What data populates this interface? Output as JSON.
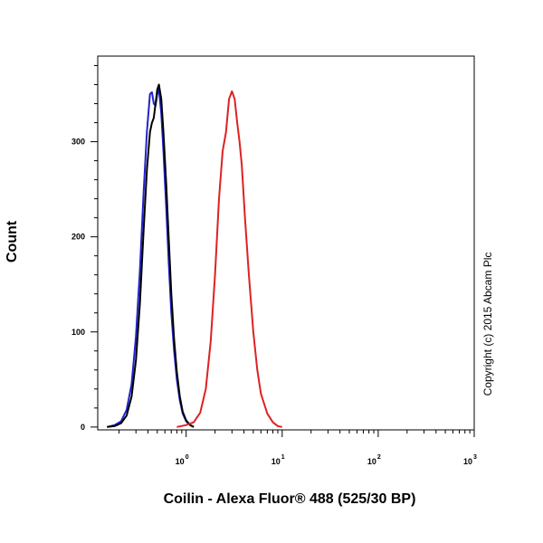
{
  "chart_data": {
    "type": "line",
    "xlabel": "Coilin - Alexa Fluor® 488 (525/30 BP)",
    "ylabel": "Count",
    "x_scale": "log",
    "xlim": [
      0.12,
      1000
    ],
    "ylim": [
      -3,
      390
    ],
    "x_ticks": [
      {
        "base": "10",
        "exp": "0",
        "value": 1
      },
      {
        "base": "10",
        "exp": "1",
        "value": 10
      },
      {
        "base": "10",
        "exp": "2",
        "value": 100
      },
      {
        "base": "10",
        "exp": "3",
        "value": 1000
      }
    ],
    "y_ticks": [
      {
        "label": "0",
        "value": 0
      },
      {
        "label": "100",
        "value": 100
      },
      {
        "label": "200",
        "value": 200
      },
      {
        "label": "300",
        "value": 300
      }
    ],
    "annotation": "Copyright (c) 2015 Abcam Plc",
    "grid": false,
    "series": [
      {
        "color": "#2222cc",
        "points": [
          [
            0.15,
            0
          ],
          [
            0.18,
            2
          ],
          [
            0.21,
            6
          ],
          [
            0.24,
            18
          ],
          [
            0.27,
            45
          ],
          [
            0.3,
            95
          ],
          [
            0.33,
            165
          ],
          [
            0.36,
            245
          ],
          [
            0.39,
            310
          ],
          [
            0.42,
            350
          ],
          [
            0.44,
            352
          ],
          [
            0.46,
            340
          ],
          [
            0.48,
            338
          ],
          [
            0.5,
            350
          ],
          [
            0.52,
            355
          ],
          [
            0.55,
            330
          ],
          [
            0.58,
            290
          ],
          [
            0.62,
            230
          ],
          [
            0.66,
            170
          ],
          [
            0.7,
            120
          ],
          [
            0.75,
            80
          ],
          [
            0.8,
            50
          ],
          [
            0.86,
            28
          ],
          [
            0.92,
            14
          ],
          [
            1.0,
            6
          ],
          [
            1.1,
            2
          ],
          [
            1.2,
            0
          ]
        ]
      },
      {
        "color": "#000000",
        "points": [
          [
            0.15,
            0
          ],
          [
            0.18,
            1
          ],
          [
            0.21,
            4
          ],
          [
            0.24,
            12
          ],
          [
            0.27,
            32
          ],
          [
            0.3,
            70
          ],
          [
            0.33,
            130
          ],
          [
            0.36,
            205
          ],
          [
            0.39,
            270
          ],
          [
            0.42,
            310
          ],
          [
            0.44,
            320
          ],
          [
            0.46,
            325
          ],
          [
            0.48,
            340
          ],
          [
            0.5,
            355
          ],
          [
            0.52,
            360
          ],
          [
            0.55,
            345
          ],
          [
            0.58,
            310
          ],
          [
            0.62,
            255
          ],
          [
            0.66,
            195
          ],
          [
            0.7,
            140
          ],
          [
            0.75,
            92
          ],
          [
            0.8,
            58
          ],
          [
            0.86,
            32
          ],
          [
            0.92,
            16
          ],
          [
            1.0,
            7
          ],
          [
            1.1,
            2
          ],
          [
            1.2,
            0
          ]
        ]
      },
      {
        "color": "#dd2222",
        "points": [
          [
            0.8,
            0
          ],
          [
            1.0,
            2
          ],
          [
            1.2,
            5
          ],
          [
            1.4,
            15
          ],
          [
            1.6,
            40
          ],
          [
            1.8,
            90
          ],
          [
            2.0,
            160
          ],
          [
            2.2,
            240
          ],
          [
            2.4,
            290
          ],
          [
            2.6,
            310
          ],
          [
            2.8,
            345
          ],
          [
            3.0,
            353
          ],
          [
            3.2,
            345
          ],
          [
            3.4,
            320
          ],
          [
            3.6,
            300
          ],
          [
            3.8,
            275
          ],
          [
            4.1,
            220
          ],
          [
            4.5,
            160
          ],
          [
            5.0,
            100
          ],
          [
            5.5,
            60
          ],
          [
            6.0,
            35
          ],
          [
            7.0,
            14
          ],
          [
            8.0,
            5
          ],
          [
            9.0,
            1
          ],
          [
            10,
            0
          ]
        ]
      }
    ]
  }
}
